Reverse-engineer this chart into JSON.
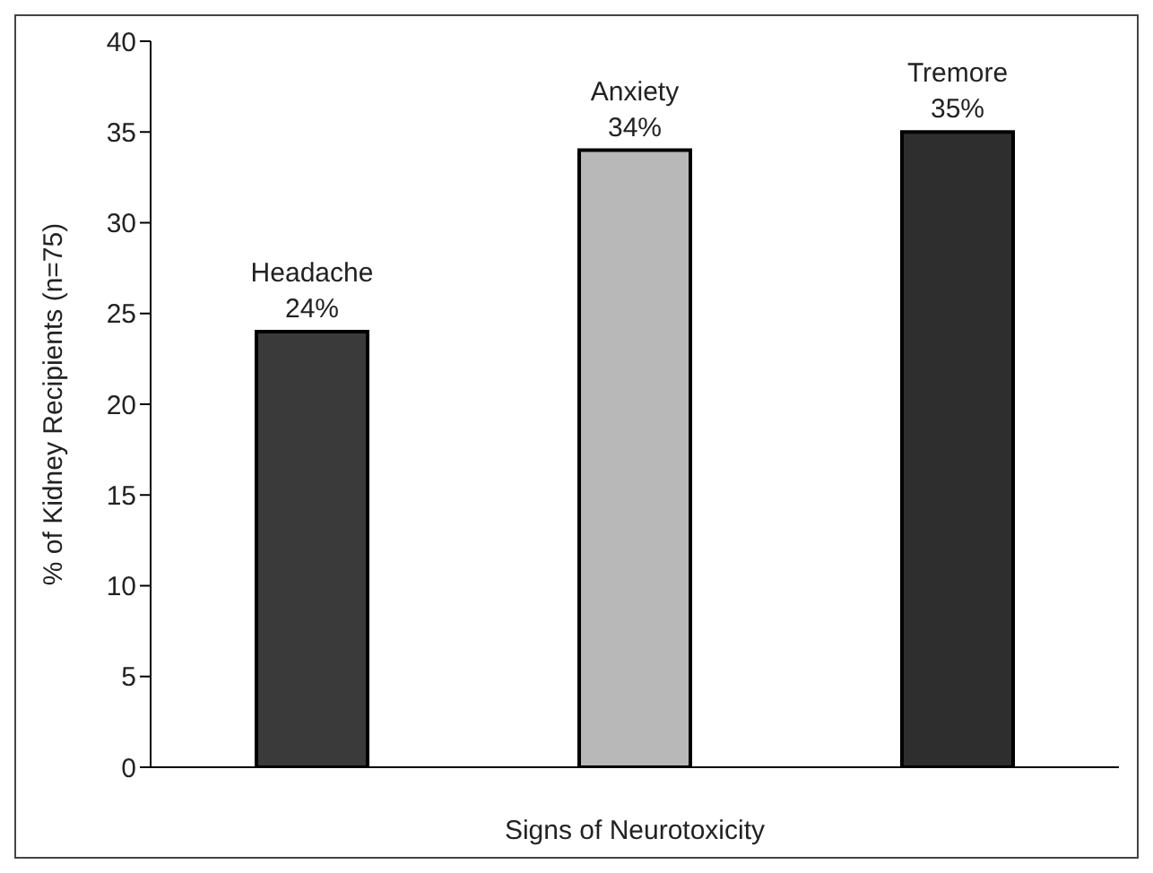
{
  "chart_data": {
    "type": "bar",
    "xlabel": "Signs of Neurotoxicity",
    "ylabel": "% of Kidney Recipients  (n=75)",
    "categories": [
      "Headache",
      "Anxiety",
      "Tremore"
    ],
    "values": [
      24,
      34,
      35
    ],
    "colors": [
      "#3a3a3a",
      "#b8b8b8",
      "#2e2e2e"
    ],
    "value_labels": [
      "24%",
      "34%",
      "35%"
    ],
    "ylim": [
      0,
      40
    ],
    "yticks": [
      0,
      5,
      10,
      15,
      20,
      25,
      30,
      35,
      40
    ],
    "tick_labels": "y"
  }
}
